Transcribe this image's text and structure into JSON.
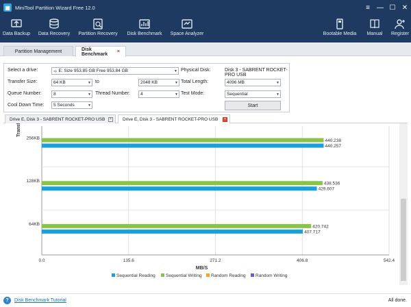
{
  "window": {
    "title": "MiniTool Partition Wizard Free 12.0",
    "controls": [
      "≡",
      "—",
      "☐",
      "✕"
    ]
  },
  "toolbar": {
    "left": [
      {
        "label": "Data Backup",
        "icon": "data-backup-icon"
      },
      {
        "label": "Data Recovery",
        "icon": "data-recovery-icon"
      },
      {
        "label": "Partition Recovery",
        "icon": "partition-recovery-icon"
      },
      {
        "label": "Disk Benchmark",
        "icon": "disk-benchmark-icon"
      },
      {
        "label": "Space Analyzer",
        "icon": "space-analyzer-icon"
      }
    ],
    "right": [
      {
        "label": "Bootable Media",
        "icon": "bootable-media-icon"
      },
      {
        "label": "Manual",
        "icon": "manual-icon"
      },
      {
        "label": "Register",
        "icon": "register-icon"
      }
    ]
  },
  "tabs": {
    "partition_management": "Partition Management",
    "disk_benchmark": "Disk Benchmark",
    "close": "×"
  },
  "settings": {
    "select_drive_label": "Select a drive:",
    "select_drive_value": "E:  Size 953.85 GB  Free 953.84 GB",
    "physical_disk_label": "Physical Disk:",
    "physical_disk_value": "Disk 3 - SABRENT ROCKET-PRO USB",
    "transfer_size_label": "Transfer Size:",
    "transfer_size_from": "64 KB",
    "to_label": "to",
    "transfer_size_to": "2048 KB",
    "total_length_label": "Total Length:",
    "total_length_value": "4096 MB",
    "queue_number_label": "Queue Number:",
    "queue_number_value": "8",
    "thread_number_label": "Thread Number:",
    "thread_number_value": "4",
    "test_mode_label": "Test Mode:",
    "test_mode_value": "Sequential",
    "cool_down_label": "Cool Down Time:",
    "cool_down_value": "5 Seconds",
    "start_button": "Start"
  },
  "result_tabs": [
    {
      "label": "Drive E, Disk 3 - SABRENT ROCKET-PRO USB",
      "active": false
    },
    {
      "label": "Drive E, Disk 3 - SABRENT ROCKET-PRO USB",
      "active": true
    }
  ],
  "colors": {
    "sequential_reading": "#1aa0db",
    "sequential_writing": "#8bc34a",
    "random_reading": "#f5a623",
    "random_writing": "#6a5acd",
    "titlebar": "#1f3a60"
  },
  "chart_data": {
    "type": "bar",
    "orientation": "horizontal",
    "ylabel": "Transfe",
    "xlabel": "MB/S",
    "xlim": [
      0,
      542.4
    ],
    "xticks": [
      "0.0",
      "135.6",
      "271.2",
      "406.8",
      "542.4"
    ],
    "categories": [
      "256KB",
      "128KB",
      "64KB"
    ],
    "series": [
      {
        "name": "Sequential Writing",
        "values": [
          440.238,
          438.536,
          420.742
        ],
        "labels": [
          "440.238",
          "438.536",
          "420.742"
        ]
      },
      {
        "name": "Sequential Reading",
        "values": [
          440.257,
          429.607,
          407.717
        ],
        "labels": [
          "440.257",
          "429.607",
          "407.717"
        ]
      }
    ],
    "legend": [
      "Sequential Reading",
      "Sequential Writing",
      "Random Reading",
      "Random Writing"
    ],
    "legend_position": "bottom"
  },
  "status": {
    "help_icon": "?",
    "link": "Disk Benchmark Tutorial",
    "right": "All done."
  }
}
